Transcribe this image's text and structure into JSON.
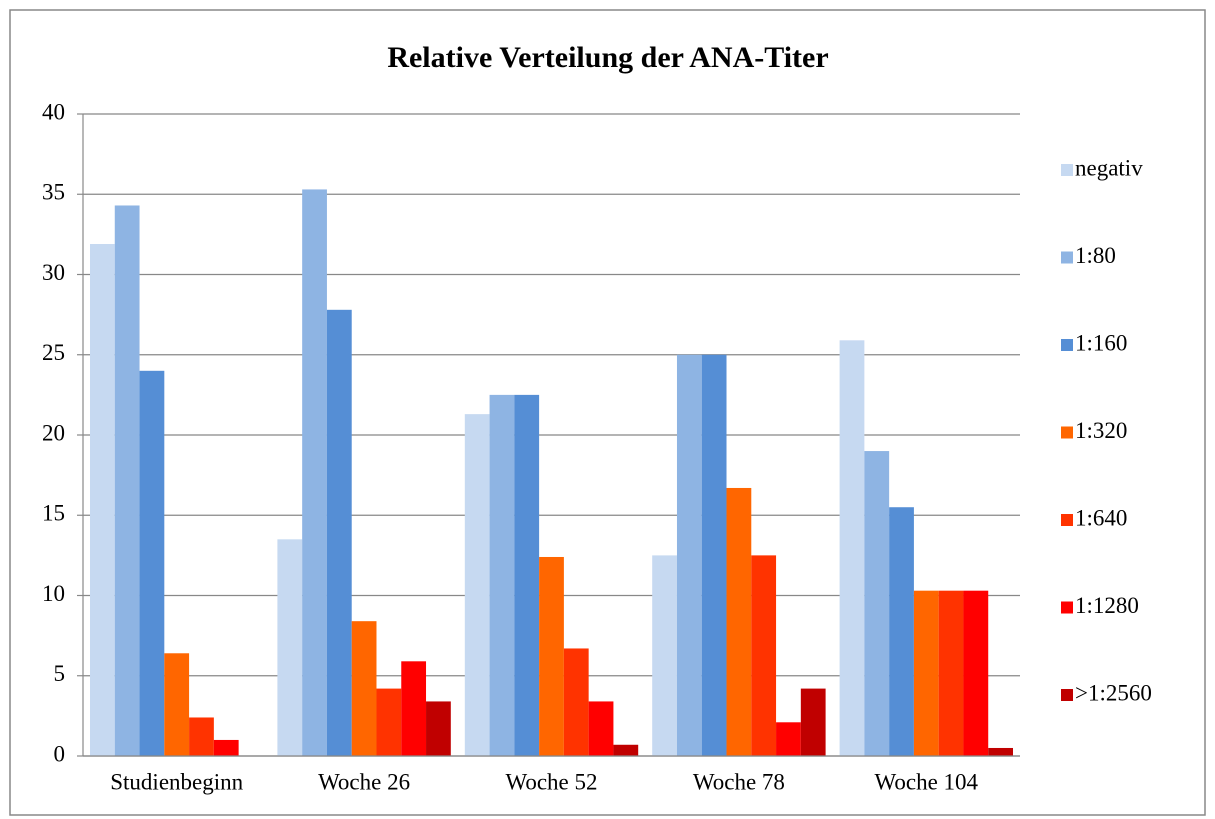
{
  "chart_data": {
    "type": "bar",
    "title": "Relative Verteilung der ANA-Titer",
    "categories": [
      "Studienbeginn",
      "Woche 26",
      "Woche 52",
      "Woche 78",
      "Woche 104"
    ],
    "series": [
      {
        "name": "negativ",
        "color": "#c6d9f1",
        "values": [
          31.9,
          13.5,
          21.3,
          12.5,
          25.9
        ]
      },
      {
        "name": "1:80",
        "color": "#8eb4e3",
        "values": [
          34.3,
          35.3,
          22.5,
          25.0,
          19.0
        ]
      },
      {
        "name": "1:160",
        "color": "#558ed5",
        "values": [
          24.0,
          27.8,
          22.5,
          25.0,
          15.5
        ]
      },
      {
        "name": "1:320",
        "color": "#ff6600",
        "values": [
          6.4,
          8.4,
          12.4,
          16.7,
          10.3
        ]
      },
      {
        "name": "1:640",
        "color": "#ff3300",
        "values": [
          2.4,
          4.2,
          6.7,
          12.5,
          10.3
        ]
      },
      {
        "name": "1:1280",
        "color": "#ff0000",
        "values": [
          1.0,
          5.9,
          3.4,
          2.1,
          10.3
        ]
      },
      {
        "name": ">1:2560",
        "color": "#c00000",
        "values": [
          0,
          3.4,
          0.7,
          4.2,
          0.5
        ]
      }
    ],
    "ylim": [
      0,
      40
    ],
    "yticks": [
      0,
      5,
      10,
      15,
      20,
      25,
      30,
      35,
      40
    ],
    "grid": true,
    "legend": "right"
  }
}
